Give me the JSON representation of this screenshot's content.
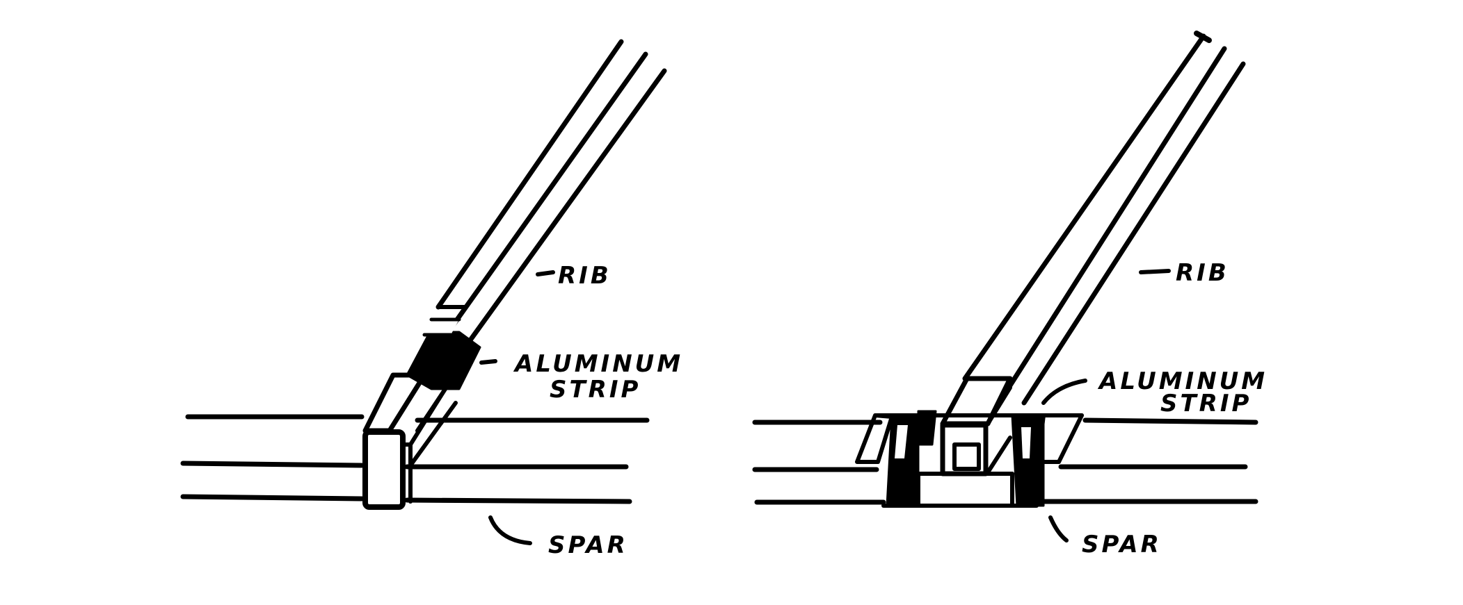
{
  "colors": {
    "ink": "#000000",
    "paper": "#ffffff"
  },
  "figures": [
    {
      "id": "left",
      "labels": {
        "rib": "RIB",
        "strip_line1": "ALUMINUM",
        "strip_line2": "STRIP",
        "spar": "SPAR"
      }
    },
    {
      "id": "right",
      "labels": {
        "rib": "RIB",
        "strip_line1": "ALUMINUM",
        "strip_line2": "STRIP",
        "spar": "SPAR"
      }
    }
  ]
}
